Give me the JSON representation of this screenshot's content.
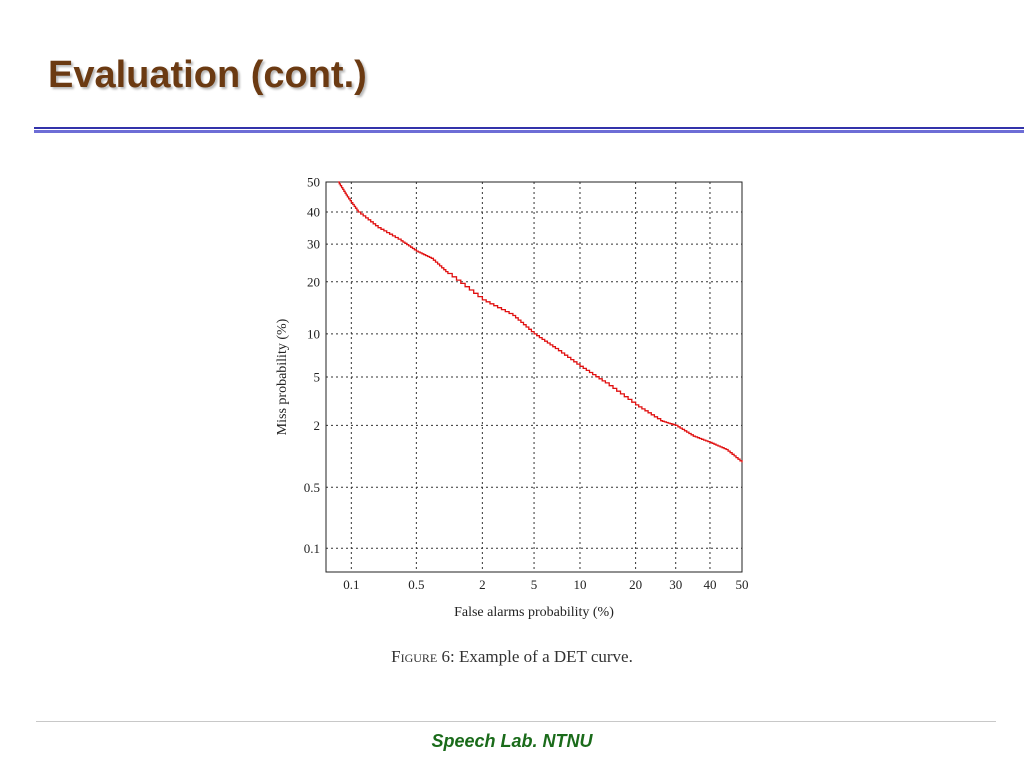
{
  "slide": {
    "title": "Evaluation (cont.)",
    "footer": "Speech Lab. NTNU"
  },
  "caption": {
    "figure_label": "Figure 6:",
    "text": "Example of a DET curve."
  },
  "colors": {
    "title": "#6b3a12",
    "rule": "#3333aa",
    "footer": "#1a6b1a",
    "curve": "#e01010"
  },
  "chart_data": {
    "type": "line",
    "xlabel": "False alarms probability (%)",
    "ylabel": "Miss probability (%)",
    "x_scale": "normal-deviate",
    "y_scale": "normal-deviate",
    "xlim": [
      0.05,
      50
    ],
    "ylim": [
      0.05,
      50
    ],
    "x_ticks": [
      0.1,
      0.5,
      2,
      5,
      10,
      20,
      30,
      40,
      50
    ],
    "x_tick_labels": [
      "0.1",
      "0.5",
      "2",
      "5",
      "10",
      "20",
      "30",
      "40",
      "50"
    ],
    "y_ticks": [
      0.1,
      0.5,
      2,
      5,
      10,
      20,
      30,
      40,
      50
    ],
    "y_tick_labels": [
      "0.1",
      "0.5",
      "2",
      "5",
      "10",
      "20",
      "30",
      "40",
      "50"
    ],
    "grid": true,
    "series": [
      {
        "color": "#e01010",
        "x": [
          0.07,
          0.09,
          0.12,
          0.2,
          0.35,
          0.5,
          0.7,
          1.0,
          2.0,
          3.5,
          5.0,
          7.0,
          10.0,
          14.0,
          20.0,
          26.0,
          30.0,
          35.0,
          40.0,
          45.0,
          50.0
        ],
        "y": [
          50,
          45,
          40,
          35,
          31,
          28,
          26,
          22,
          16,
          13,
          10,
          8,
          6,
          4.5,
          3,
          2.2,
          2.0,
          1.6,
          1.4,
          1.2,
          0.9
        ]
      }
    ]
  }
}
